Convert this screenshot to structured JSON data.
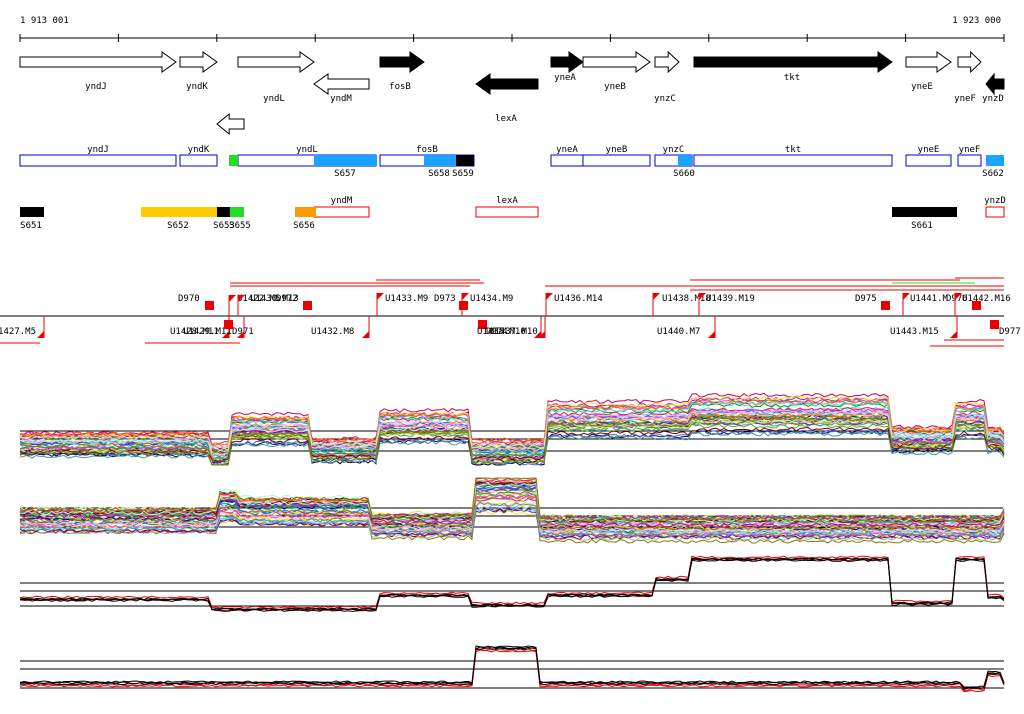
{
  "coords": {
    "start_label": "1 913 001",
    "end_label": "1 923 000",
    "start": 1913001,
    "end": 1923000
  },
  "colors": {
    "black": "#000000",
    "blue_outline": "#0000cc",
    "blue_fill": "#1aa3ff",
    "green": "#22dd22",
    "yellow": "#ffcc00",
    "orange": "#ff9900",
    "red": "#ee0000"
  },
  "genes": [
    {
      "name": "yndJ",
      "strand": "+",
      "filled": false
    },
    {
      "name": "yndK",
      "strand": "+",
      "filled": false
    },
    {
      "name": "yndL",
      "strand": "+",
      "filled": false
    },
    {
      "name": "yndM",
      "strand": "-",
      "filled": false
    },
    {
      "name": "fosB",
      "strand": "+",
      "filled": true
    },
    {
      "name": "lexA",
      "strand": "-",
      "filled": true
    },
    {
      "name": "yneA",
      "strand": "+",
      "filled": true
    },
    {
      "name": "yneB",
      "strand": "+",
      "filled": false
    },
    {
      "name": "ynzC",
      "strand": "+",
      "filled": false
    },
    {
      "name": "tkt",
      "strand": "+",
      "filled": true
    },
    {
      "name": "yneE",
      "strand": "+",
      "filled": false
    },
    {
      "name": "yneF",
      "strand": "+",
      "filled": false
    },
    {
      "name": "ynzD",
      "strand": "-",
      "filled": true
    },
    {
      "name": "",
      "strand": "-",
      "filled": false
    }
  ],
  "plus_boxes": [
    {
      "name": "yndJ"
    },
    {
      "name": "yndK"
    },
    {
      "name": "yndL"
    },
    {
      "name": "fosB"
    },
    {
      "name": "yneA"
    },
    {
      "name": "yneB"
    },
    {
      "name": "ynzC"
    },
    {
      "name": "tkt"
    },
    {
      "name": "yneE"
    },
    {
      "name": "yneF"
    }
  ],
  "plus_segments": [
    {
      "name": "",
      "color": "green"
    },
    {
      "name": "S657",
      "color": "blue_fill"
    },
    {
      "name": "S658",
      "color": "blue_fill"
    },
    {
      "name": "S659",
      "color": "black"
    },
    {
      "name": "S660",
      "color": "blue_fill"
    },
    {
      "name": "S662",
      "color": "blue_fill"
    }
  ],
  "minus_boxes": [
    {
      "name": "yndM"
    },
    {
      "name": "lexA"
    },
    {
      "name": "ynzD"
    }
  ],
  "minus_segments": [
    {
      "name": "S651",
      "color": "black"
    },
    {
      "name": "S652",
      "color": "yellow"
    },
    {
      "name": "S653",
      "color": "black"
    },
    {
      "name": "S655",
      "color": "green"
    },
    {
      "name": "S656",
      "color": "orange"
    },
    {
      "name": "S661",
      "color": "black"
    }
  ],
  "features_above": [
    "D970",
    "U1422.M5",
    "U1430.M13",
    "D972",
    "U1433.M9",
    "D973",
    "U1434.M9",
    "U1436.M14",
    "U1438.M18",
    "U1439.M19",
    "D975",
    "U1441.M",
    "D976",
    "U1442.M16"
  ],
  "features_below": [
    "U1427.M5",
    "U1428.M11",
    "U1429.M11",
    "D971",
    "U1432.M8",
    "D974",
    "U1435.M10",
    "U1437.M10",
    "U1440.M7",
    "U1443.M15",
    "D977"
  ],
  "expression_panels": [
    {
      "id": "panel-1",
      "series_count": 40
    },
    {
      "id": "panel-2",
      "series_count": 40
    },
    {
      "id": "panel-3",
      "series_count": 5
    },
    {
      "id": "panel-4",
      "series_count": 5
    }
  ]
}
